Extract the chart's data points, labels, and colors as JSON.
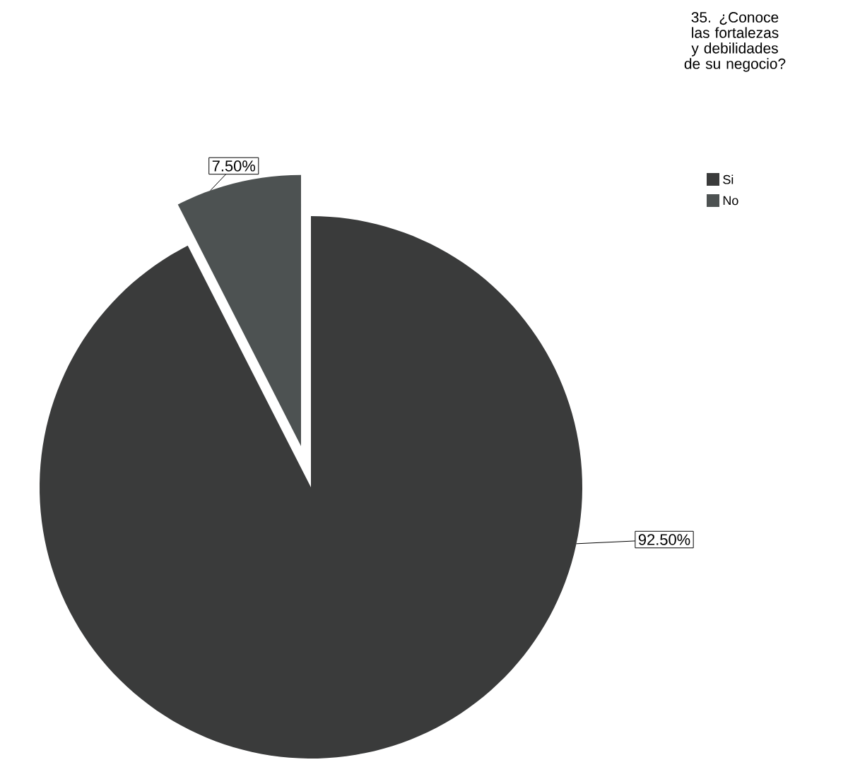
{
  "chart_data": {
    "type": "pie",
    "legend_title": "35. ¿Conoce las fortalezas y debilidades de su negocio?",
    "categories": [
      "Si",
      "No"
    ],
    "values": [
      92.5,
      7.5
    ],
    "colors": [
      "#3a3b3b",
      "#4d5252"
    ],
    "value_labels": [
      "92.50%",
      "7.50%"
    ],
    "legend": "top right"
  }
}
